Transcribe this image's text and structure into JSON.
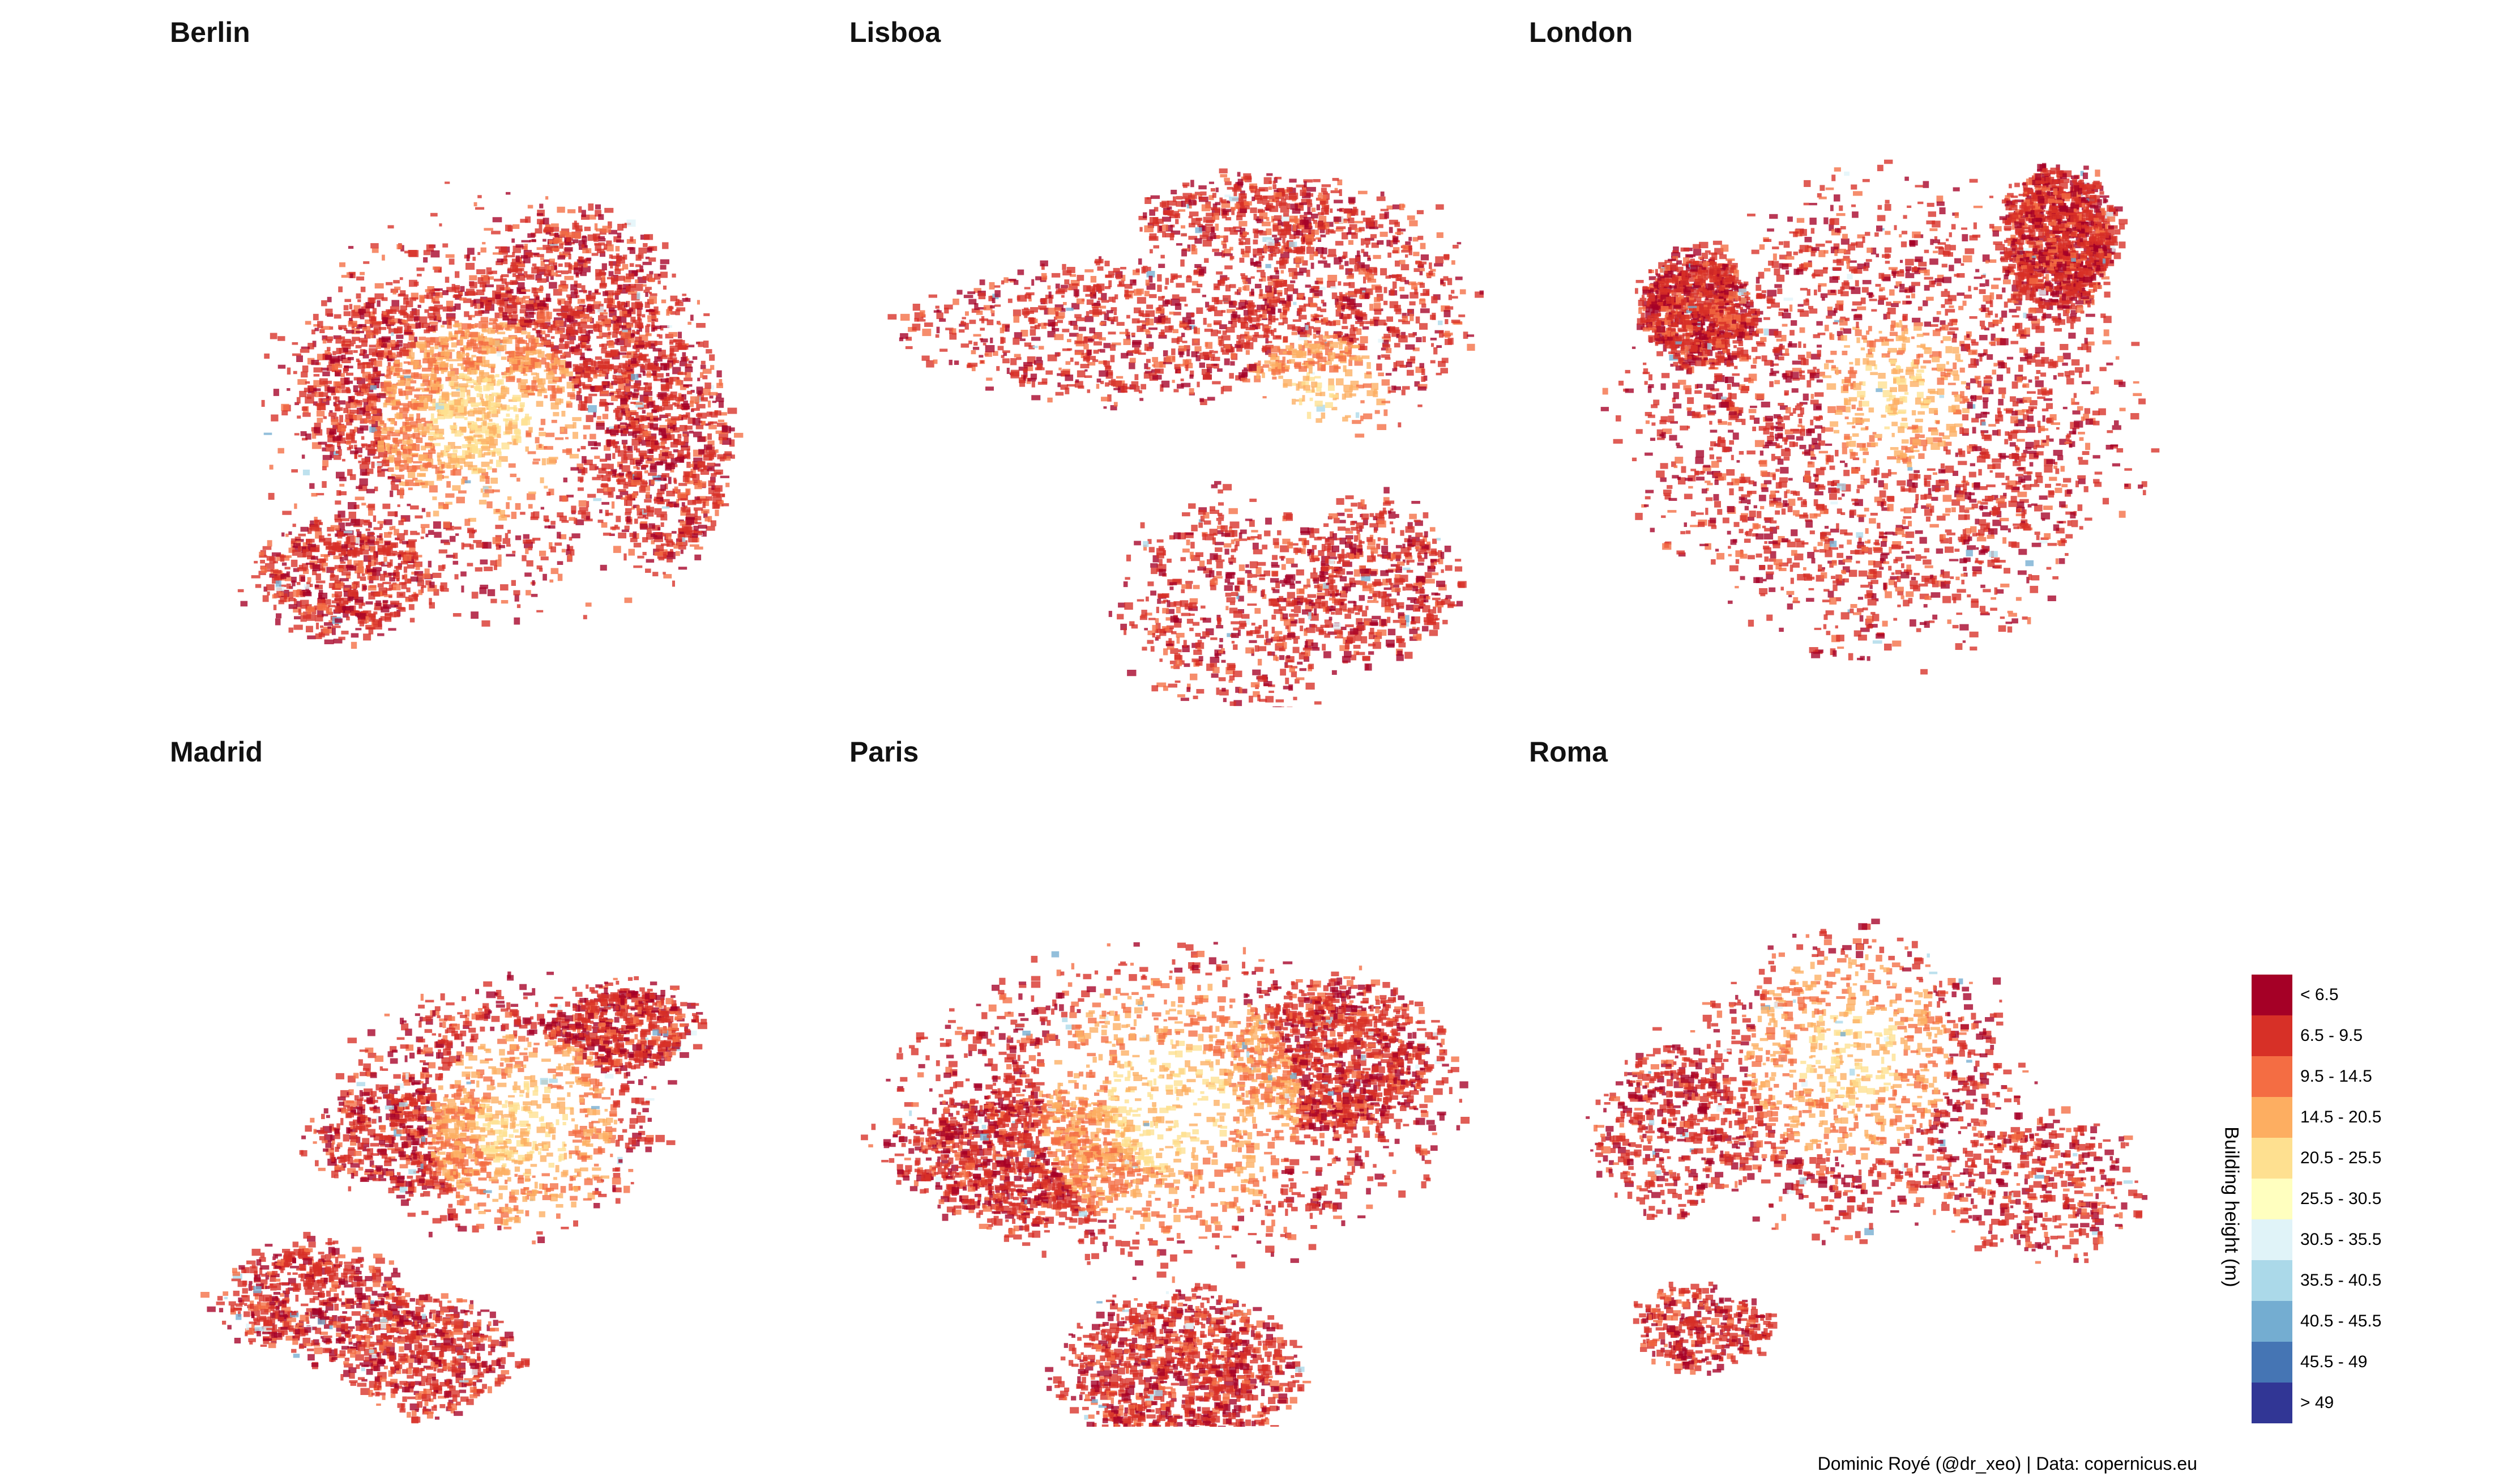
{
  "panels": [
    {
      "id": "berlin",
      "title": "Berlin"
    },
    {
      "id": "lisboa",
      "title": "Lisboa"
    },
    {
      "id": "london",
      "title": "London"
    },
    {
      "id": "madrid",
      "title": "Madrid"
    },
    {
      "id": "paris",
      "title": "Paris"
    },
    {
      "id": "roma",
      "title": "Roma"
    }
  ],
  "legend": {
    "title": "Building height (m)",
    "classes": [
      {
        "label": "< 6.5",
        "color": "#a50026"
      },
      {
        "label": "6.5 - 9.5",
        "color": "#d73027"
      },
      {
        "label": "9.5 - 14.5",
        "color": "#f46d43"
      },
      {
        "label": "14.5 - 20.5",
        "color": "#fdae61"
      },
      {
        "label": "20.5 - 25.5",
        "color": "#fee090"
      },
      {
        "label": "25.5 - 30.5",
        "color": "#ffffbf"
      },
      {
        "label": "30.5 - 35.5",
        "color": "#e0f3f8"
      },
      {
        "label": "35.5 - 40.5",
        "color": "#abd9e9"
      },
      {
        "label": "40.5 - 45.5",
        "color": "#74add1"
      },
      {
        "label": "45.5 - 49",
        "color": "#4575b4"
      },
      {
        "label": "> 49",
        "color": "#313695"
      }
    ]
  },
  "caption": "Dominic Royé (@dr_xeo) | Data: copernicus.eu"
}
